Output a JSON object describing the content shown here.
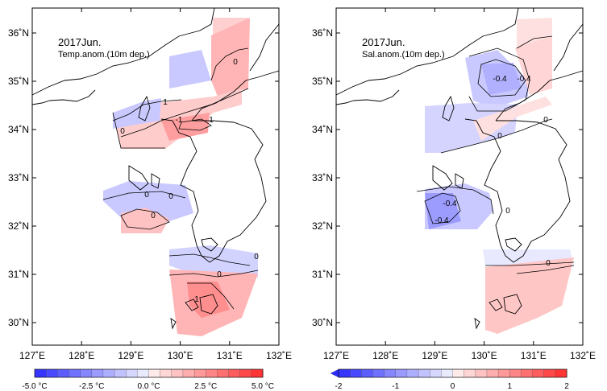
{
  "panels": [
    {
      "id": "temp",
      "title": "2017Jun.",
      "subtitle": "Temp.anom.(10m dep.)",
      "colorbar": {
        "labels": [
          "-5.0 °C",
          "-2.5 °C",
          "0.0 °C",
          "2.5 °C",
          "5.0 °C"
        ],
        "min": -5,
        "max": 5,
        "left_arrow": false
      },
      "contour_labels": [
        "0",
        "1",
        "0",
        "-1",
        "0",
        "0",
        "0",
        "0",
        "0",
        "1",
        "1"
      ]
    },
    {
      "id": "sal",
      "title": "2017Jun.",
      "subtitle": "Sal.anom.(10m dep.)",
      "colorbar": {
        "labels": [
          "-2",
          "-1",
          "0",
          "1",
          "2"
        ],
        "min": -2,
        "max": 2,
        "left_arrow": true
      },
      "contour_labels": [
        "-0.4",
        "-0.4",
        "0",
        "0",
        "0",
        "-0.4",
        "-0.4",
        "0"
      ]
    }
  ],
  "axes": {
    "lon_labels": [
      "127˚E",
      "128˚E",
      "129˚E",
      "130˚E",
      "131˚E",
      "132˚E"
    ],
    "lat_labels": [
      "36˚N",
      "35˚N",
      "34˚N",
      "33˚N",
      "32˚N",
      "31˚N",
      "30˚N"
    ]
  },
  "colors": {
    "negative_strong": "#2b2bff",
    "positive_strong": "#ff2b2b",
    "land_line": "#000000"
  }
}
